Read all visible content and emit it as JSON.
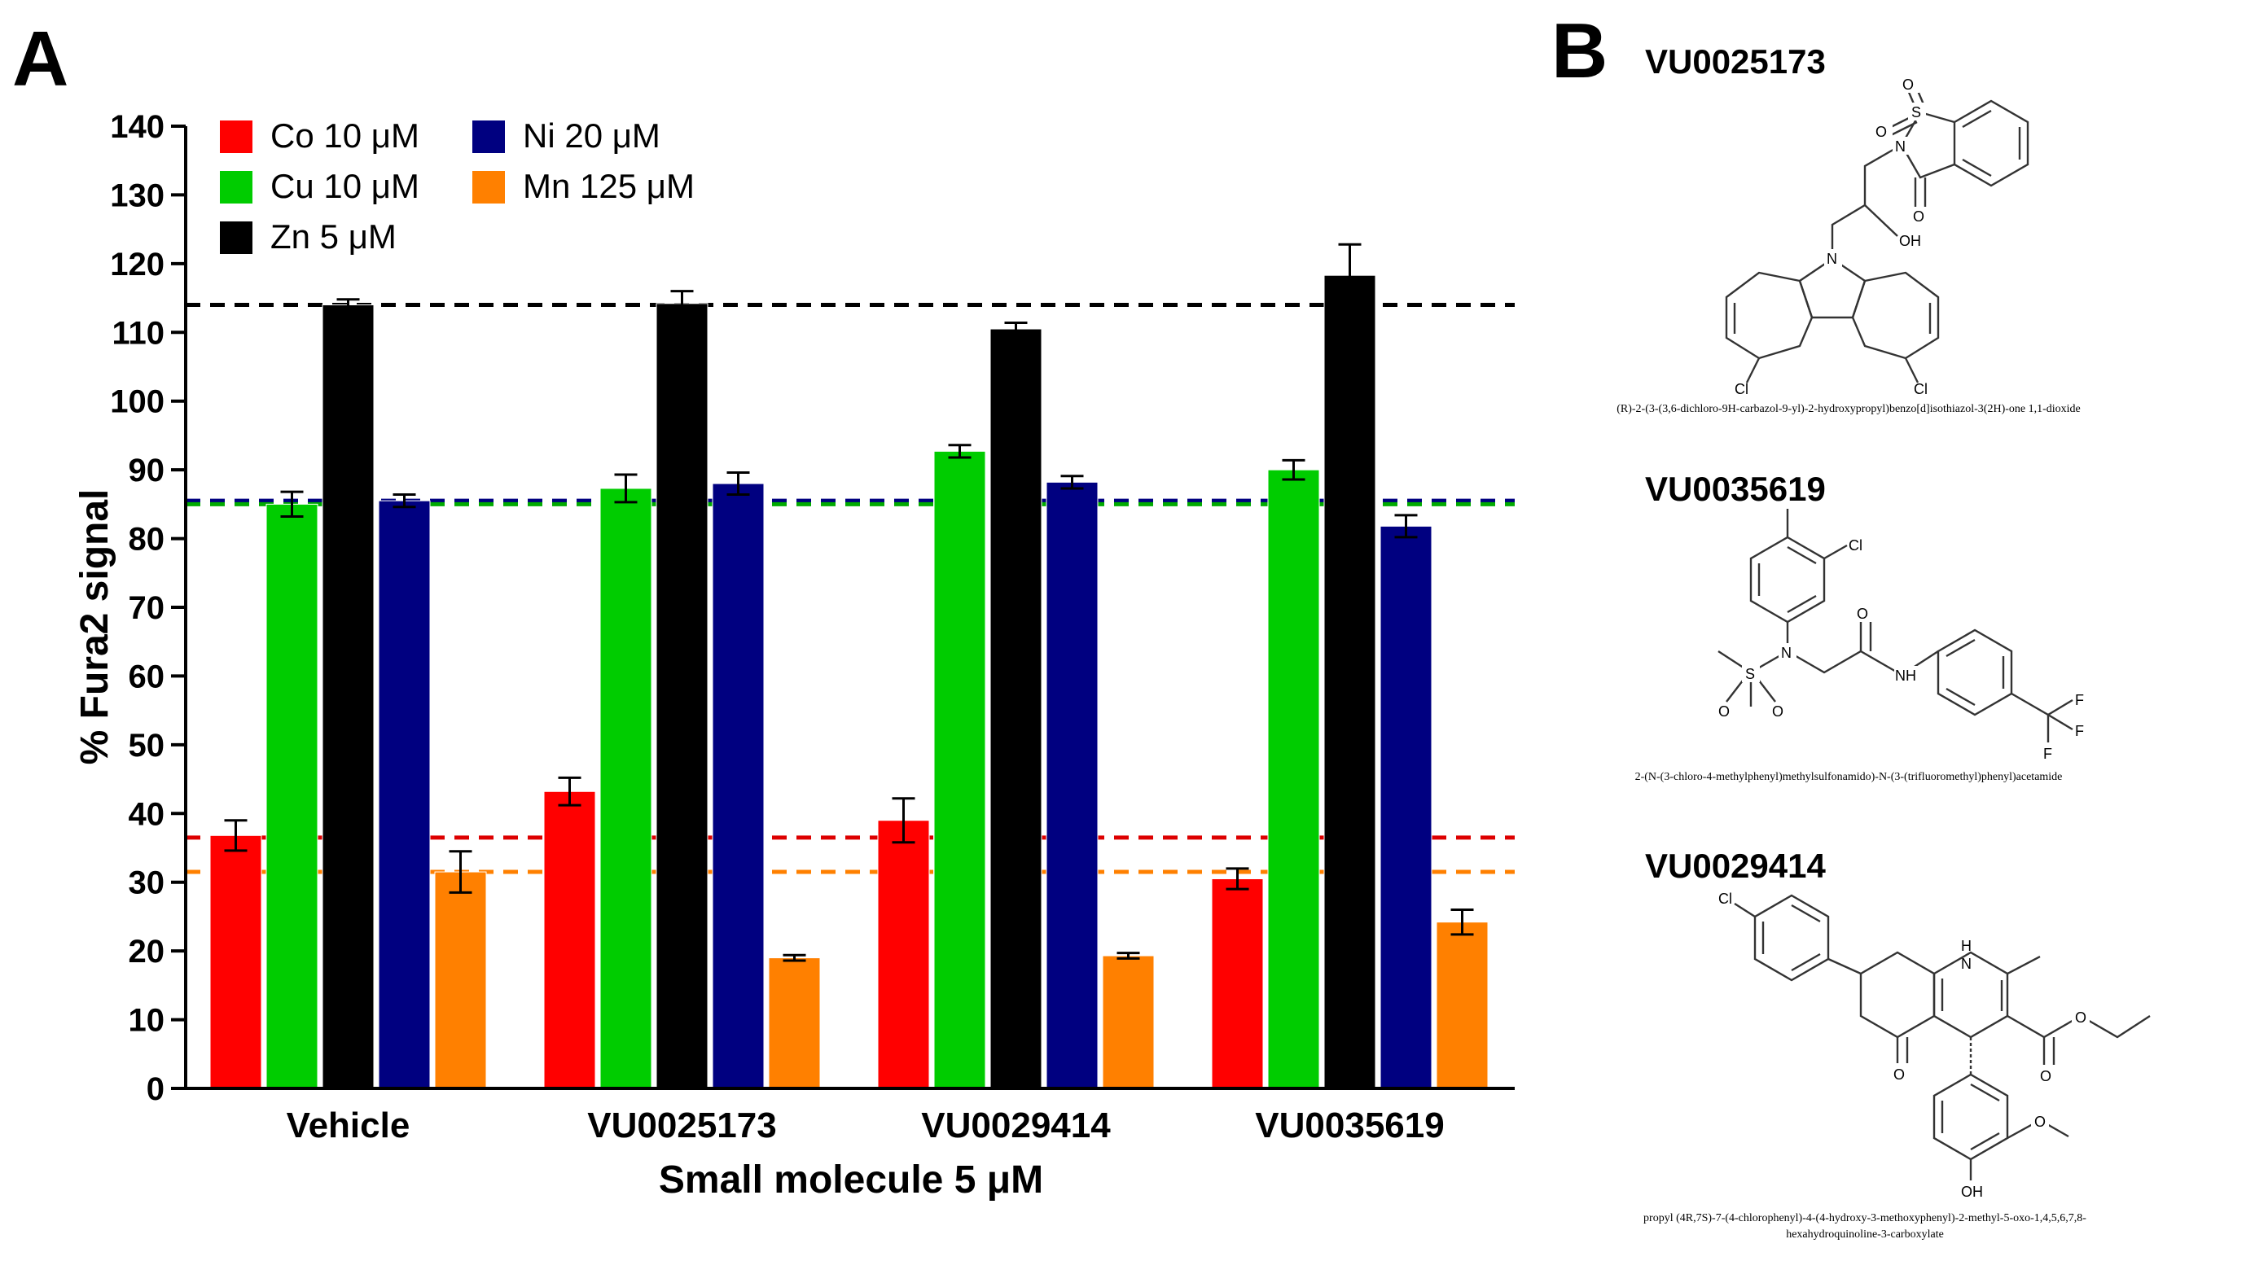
{
  "panel_a": {
    "letter": "A"
  },
  "panel_b": {
    "letter": "B"
  },
  "chart_data": {
    "type": "bar",
    "title": "",
    "xlabel": "Small molecule 5 μM",
    "ylabel": "% Fura2 signal",
    "ylim": [
      0,
      140
    ],
    "yticks": [
      0,
      10,
      20,
      30,
      40,
      50,
      60,
      70,
      80,
      90,
      100,
      110,
      120,
      130,
      140
    ],
    "categories": [
      "Vehicle",
      "VU0025173",
      "VU0029414",
      "VU0035619"
    ],
    "series": [
      {
        "name": "Co 10 μM",
        "color": "#ff0000",
        "values": [
          36.8,
          43.2,
          39.0,
          30.5
        ],
        "errors": [
          2.2,
          2.0,
          3.2,
          1.5
        ]
      },
      {
        "name": "Cu 10 μM",
        "color": "#00cc00",
        "values": [
          85.0,
          87.3,
          92.7,
          90.0
        ],
        "errors": [
          1.8,
          2.0,
          0.9,
          1.4
        ]
      },
      {
        "name": "Zn 5 μM",
        "color": "#000000",
        "values": [
          114.0,
          114.2,
          110.5,
          118.3
        ],
        "errors": [
          0.8,
          1.8,
          0.9,
          4.5
        ]
      },
      {
        "name": "Ni 20 μM",
        "color": "#000080",
        "values": [
          85.5,
          88.0,
          88.2,
          81.8
        ],
        "errors": [
          0.9,
          1.6,
          0.9,
          1.6
        ]
      },
      {
        "name": "Mn 125 μM",
        "color": "#ff8000",
        "values": [
          31.5,
          19.0,
          19.3,
          24.2
        ],
        "errors": [
          3.0,
          0.4,
          0.4,
          1.8
        ]
      }
    ],
    "reference_lines": [
      {
        "series": "Zn 5 μM",
        "value": 114.0,
        "color": "#000000"
      },
      {
        "series": "Ni 20 μM",
        "value": 85.5,
        "color": "#000080"
      },
      {
        "series": "Cu 10 μM",
        "value": 85.0,
        "color": "#00aa00"
      },
      {
        "series": "Co 10 μM",
        "value": 36.5,
        "color": "#dd0000"
      },
      {
        "series": "Mn 125 μM",
        "value": 31.5,
        "color": "#ff8000"
      }
    ],
    "legend_position": "top-left"
  },
  "compounds": [
    {
      "id": "VU0025173",
      "iupac": "(R)-2-(3-(3,6-dichloro-9H-carbazol-9-yl)-2-hydroxypropyl)benzo[d]isothiazol-3(2H)-one 1,1-dioxide"
    },
    {
      "id": "VU0035619",
      "iupac": "2-(N-(3-chloro-4-methylphenyl)methylsulfonamido)-N-(3-(trifluoromethyl)phenyl)acetamide"
    },
    {
      "id": "VU0029414",
      "iupac_line1": "propyl (4R,7S)-7-(4-chlorophenyl)-4-(4-hydroxy-3-methoxyphenyl)-2-methyl-5-oxo-1,4,5,6,7,8-",
      "iupac_line2": "hexahydroquinoline-3-carboxylate"
    }
  ],
  "atoms": {
    "o": "O",
    "s": "S",
    "n": "N",
    "oh": "OH",
    "cl": "Cl",
    "nh": "NH",
    "f": "F",
    "h": "H"
  }
}
